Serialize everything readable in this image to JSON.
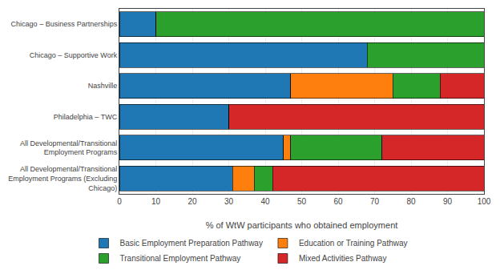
{
  "chart_data": {
    "type": "bar",
    "orientation": "horizontal",
    "stacked": true,
    "categories": [
      "Chicago – Business Partnerships",
      "Chicago – Supportive Work",
      "Nashville",
      "Philadelphia – TWC",
      "All Developmental/Transitional\nEmployment Programs",
      "All Developmental/Transitional\nEmployment Programs (Excluding\nChicago)"
    ],
    "series": [
      {
        "name": "Basic Employment Preparation Pathway",
        "values": [
          10,
          68,
          47,
          30,
          45,
          31
        ]
      },
      {
        "name": "Education or Training Pathway",
        "values": [
          0,
          0,
          28,
          0,
          2,
          6
        ]
      },
      {
        "name": "Transitional Employment Pathway",
        "values": [
          90,
          32,
          13,
          0,
          25,
          5
        ]
      },
      {
        "name": "Mixed Activities Pathway",
        "values": [
          0,
          0,
          12,
          70,
          28,
          58
        ]
      }
    ],
    "xlabel": "% of WtW participants who obtained employment",
    "xlim": [
      0,
      100
    ],
    "xticks": [
      0,
      10,
      20,
      30,
      40,
      50,
      60,
      70,
      80,
      90,
      100
    ],
    "grid": true,
    "legend": "bottom"
  }
}
